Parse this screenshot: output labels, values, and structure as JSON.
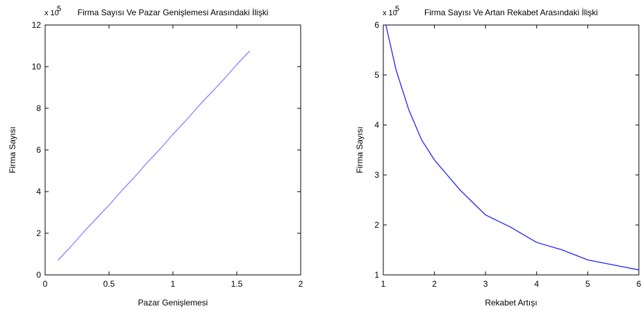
{
  "chart_data": [
    {
      "type": "line",
      "title": "Firma Sayısı Ve Pazar Genişlemesi Arasındaki İlişki",
      "xlabel": "Pazar Genişlemesi",
      "ylabel": "Firma Sayısı",
      "y_exponent": "x 10",
      "y_exponent_power": "5",
      "xlim": [
        0,
        2
      ],
      "ylim": [
        0,
        12
      ],
      "xticks": [
        "0",
        "0.5",
        "1",
        "1.5",
        "2"
      ],
      "yticks": [
        "0",
        "2",
        "4",
        "6",
        "8",
        "10",
        "12"
      ],
      "grid": false,
      "color": "#8080ff",
      "series": [
        {
          "x": [
            0.1,
            0.2,
            0.3,
            0.4,
            0.5,
            0.6,
            0.7,
            0.8,
            0.9,
            1.0,
            1.1,
            1.2,
            1.3,
            1.4,
            1.5,
            1.6
          ],
          "values": [
            0.7,
            1.35,
            2.05,
            2.7,
            3.35,
            4.05,
            4.7,
            5.4,
            6.05,
            6.75,
            7.4,
            8.1,
            8.75,
            9.4,
            10.1,
            10.75
          ]
        }
      ]
    },
    {
      "type": "line",
      "title": "Firma Sayısı Ve Artan Rekabet Arasındaki İlişki",
      "xlabel": "Rekabet Artışı",
      "ylabel": "Firma Sayısı",
      "y_exponent": "x 10",
      "y_exponent_power": "5",
      "xlim": [
        1,
        6
      ],
      "ylim": [
        1,
        6
      ],
      "xticks": [
        "1",
        "2",
        "3",
        "4",
        "5",
        "6"
      ],
      "yticks": [
        "1",
        "2",
        "3",
        "4",
        "5",
        "6"
      ],
      "grid": false,
      "color": "#2020ff",
      "series": [
        {
          "x": [
            1.05,
            1.25,
            1.5,
            1.75,
            2.0,
            2.25,
            2.5,
            2.75,
            3.0,
            3.5,
            4.0,
            4.5,
            5.0,
            5.5,
            6.0
          ],
          "values": [
            6.0,
            5.1,
            4.3,
            3.7,
            3.3,
            3.0,
            2.7,
            2.45,
            2.2,
            1.95,
            1.65,
            1.5,
            1.3,
            1.2,
            1.1
          ]
        }
      ]
    }
  ]
}
